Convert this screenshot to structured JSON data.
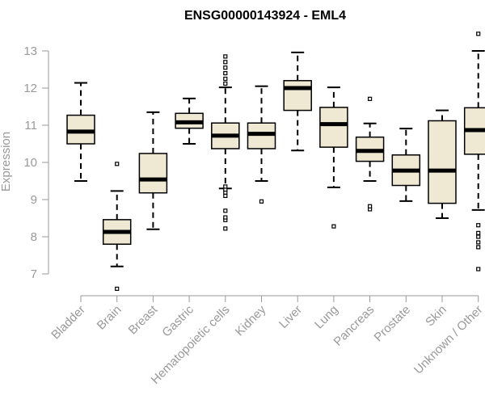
{
  "chart_data": {
    "type": "boxplot",
    "title": "ENSG00000143924 - EML4",
    "ylabel": "Expression",
    "xlabel": "",
    "ylim": [
      6.5,
      13.6
    ],
    "yticks": [
      7,
      8,
      9,
      10,
      11,
      12,
      13
    ],
    "grid": false,
    "legend": "none",
    "colors": {
      "box_fill": "#efe8d2",
      "box_stroke": "#000000",
      "axis": "#999999",
      "title": "#000000"
    },
    "categories": [
      "Bladder",
      "Brain",
      "Breast",
      "Gastric",
      "Hematopoietic cells",
      "Kidney",
      "Liver",
      "Lung",
      "Pancreas",
      "Prostate",
      "Skin",
      "Unknown / Other"
    ],
    "boxes": [
      {
        "category": "Bladder",
        "whisker_low": 9.5,
        "q1": 10.5,
        "median": 10.83,
        "q3": 11.27,
        "whisker_high": 12.14,
        "outliers": []
      },
      {
        "category": "Brain",
        "whisker_low": 7.2,
        "q1": 7.8,
        "median": 8.13,
        "q3": 8.46,
        "whisker_high": 9.23,
        "outliers": [
          6.6,
          9.96
        ]
      },
      {
        "category": "Breast",
        "whisker_low": 8.2,
        "q1": 9.18,
        "median": 9.54,
        "q3": 10.24,
        "whisker_high": 11.35,
        "outliers": []
      },
      {
        "category": "Gastric",
        "whisker_low": 10.5,
        "q1": 10.92,
        "median": 11.08,
        "q3": 11.32,
        "whisker_high": 11.72,
        "outliers": []
      },
      {
        "category": "Hematopoietic cells",
        "whisker_low": 9.3,
        "q1": 10.37,
        "median": 10.72,
        "q3": 11.06,
        "whisker_high": 12.02,
        "outliers": [
          8.22,
          8.45,
          8.52,
          8.7,
          9.1,
          9.19,
          9.27,
          9.35,
          12.12,
          12.25,
          12.4,
          12.55,
          12.7,
          12.85
        ]
      },
      {
        "category": "Kidney",
        "whisker_low": 9.5,
        "q1": 10.37,
        "median": 10.77,
        "q3": 11.06,
        "whisker_high": 12.05,
        "outliers": [
          8.95
        ]
      },
      {
        "category": "Liver",
        "whisker_low": 10.32,
        "q1": 11.4,
        "median": 12.0,
        "q3": 12.2,
        "whisker_high": 12.96,
        "outliers": []
      },
      {
        "category": "Lung",
        "whisker_low": 9.33,
        "q1": 10.41,
        "median": 11.03,
        "q3": 11.48,
        "whisker_high": 12.02,
        "outliers": [
          8.28
        ]
      },
      {
        "category": "Pancreas",
        "whisker_low": 9.5,
        "q1": 10.03,
        "median": 10.31,
        "q3": 10.68,
        "whisker_high": 11.05,
        "outliers": [
          8.74,
          8.82,
          11.71
        ]
      },
      {
        "category": "Prostate",
        "whisker_low": 8.96,
        "q1": 9.38,
        "median": 9.78,
        "q3": 10.2,
        "whisker_high": 10.91,
        "outliers": []
      },
      {
        "category": "Skin",
        "whisker_low": 8.5,
        "q1": 8.9,
        "median": 9.78,
        "q3": 11.12,
        "whisker_high": 11.4,
        "outliers": []
      },
      {
        "category": "Unknown / Other",
        "whisker_low": 8.72,
        "q1": 10.22,
        "median": 10.87,
        "q3": 11.47,
        "whisker_high": 13.0,
        "outliers": [
          7.13,
          7.72,
          7.85,
          8.0,
          8.1,
          8.31,
          13.46
        ]
      }
    ]
  }
}
